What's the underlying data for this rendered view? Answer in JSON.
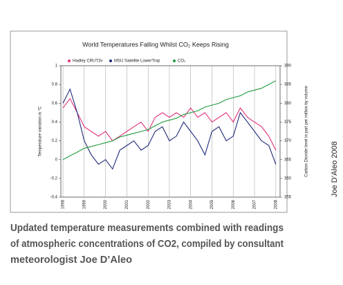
{
  "chart_data": {
    "type": "line",
    "title": "World Temperatures Falling Whilst CO₂ Keeps Rising",
    "ylabel": "Temperature variation in °C",
    "y2label": "Carbon Dioxide level in part per million by volume",
    "x": [
      1998.0,
      1998.33,
      1998.67,
      1999.0,
      1999.33,
      1999.67,
      2000.0,
      2000.33,
      2000.67,
      2001.0,
      2001.33,
      2001.67,
      2002.0,
      2002.33,
      2002.67,
      2003.0,
      2003.33,
      2003.67,
      2004.0,
      2004.33,
      2004.67,
      2005.0,
      2005.33,
      2005.67,
      2006.0,
      2006.33,
      2006.67,
      2007.0,
      2007.33,
      2007.67,
      2008.0
    ],
    "series": [
      {
        "name": "Hadley CRUT3v",
        "color": "#e0307a",
        "values": [
          0.55,
          0.65,
          0.5,
          0.35,
          0.3,
          0.25,
          0.3,
          0.2,
          0.25,
          0.3,
          0.35,
          0.4,
          0.3,
          0.45,
          0.5,
          0.45,
          0.5,
          0.45,
          0.55,
          0.45,
          0.5,
          0.4,
          0.45,
          0.5,
          0.4,
          0.55,
          0.45,
          0.4,
          0.35,
          0.25,
          0.1
        ]
      },
      {
        "name": "MSU Satellite LowerTrop",
        "color": "#1e2a78",
        "values": [
          0.6,
          0.75,
          0.5,
          0.2,
          0.05,
          -0.05,
          0.0,
          -0.1,
          0.1,
          0.15,
          0.2,
          0.1,
          0.15,
          0.3,
          0.35,
          0.2,
          0.25,
          0.4,
          0.3,
          0.2,
          0.05,
          0.3,
          0.35,
          0.2,
          0.25,
          0.5,
          0.4,
          0.3,
          0.2,
          0.15,
          -0.05
        ]
      },
      {
        "name": "CO₂",
        "color": "#1f9a3c",
        "axis": "y2",
        "values": [
          365,
          366,
          367,
          368,
          368.5,
          369,
          369.5,
          370,
          371,
          371.5,
          372,
          372.5,
          373,
          374,
          375,
          375.5,
          376,
          377,
          377.5,
          378,
          379,
          379.5,
          380,
          381,
          381.5,
          382,
          383,
          383.5,
          384,
          385,
          386
        ]
      }
    ],
    "xlim": [
      1997.9,
      2008.2
    ],
    "xticks": [
      1998,
      1999,
      2000,
      2001,
      2002,
      2003,
      2004,
      2005,
      2006,
      2007,
      2008
    ],
    "ylim": [
      -0.4,
      1
    ],
    "yticks": [
      -0.4,
      -0.2,
      0,
      0.2,
      0.4,
      0.6,
      0.8,
      1
    ],
    "y2lim": [
      355,
      390
    ],
    "y2ticks": [
      355,
      360,
      365,
      370,
      375,
      380,
      385,
      390
    ],
    "grid": "x"
  },
  "caption": [
    "Updated temperature measurements combined with readings",
    "of atmospheric concentrations of CO2, compiled by consultant",
    "meteorologist Joe D’Aleo"
  ],
  "credit": "Joe D’Aleo 2008"
}
